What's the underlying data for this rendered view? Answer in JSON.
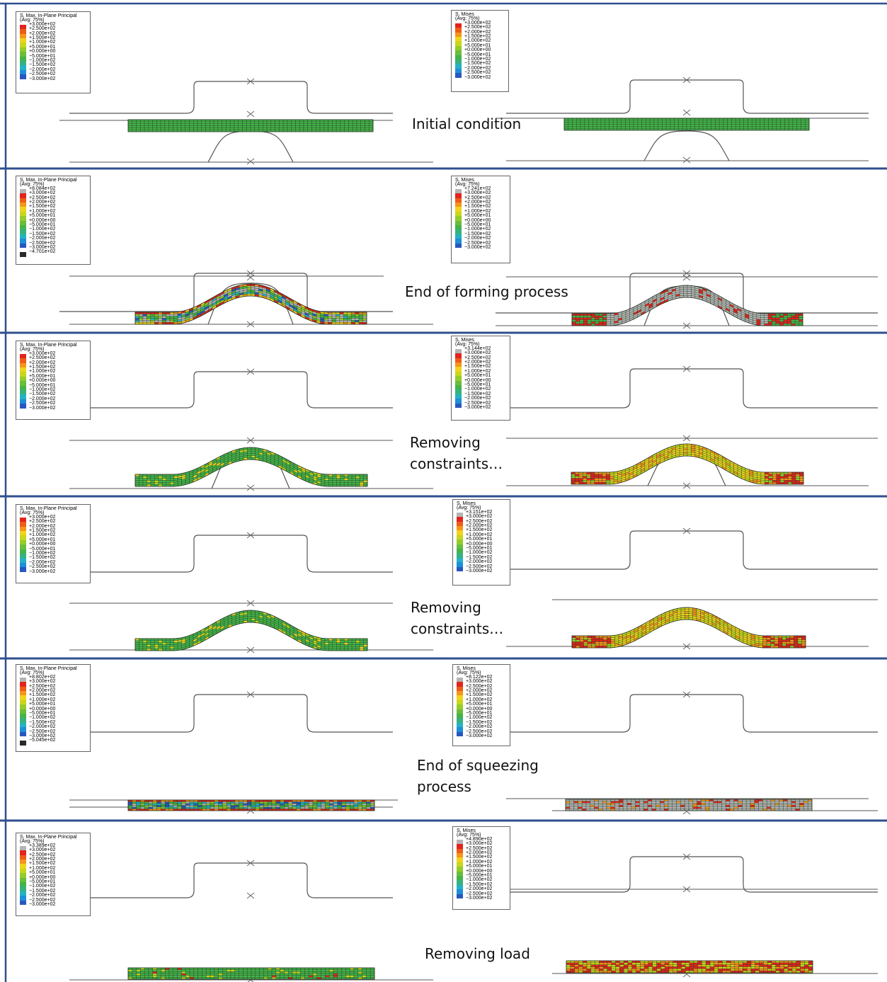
{
  "legend_colors": {
    "gray": "#b4b4b4",
    "red": "#e3241d",
    "orange_red": "#ee5c17",
    "orange": "#f5951b",
    "yellow": "#f0d31d",
    "yellow_green": "#c8d61c",
    "light_green": "#95cc2a",
    "green": "#6bbd3c",
    "med_green": "#45b34a",
    "teal": "#37b27e",
    "cyan": "#25b2c5",
    "sky": "#1e8fd8",
    "blue": "#2957c0",
    "dark_blue": "#2b3596",
    "black": "#2a2a2a"
  },
  "base_values": [
    "+3.000e+02",
    "+2.500e+02",
    "+2.000e+02",
    "+1.500e+02",
    "+1.000e+02",
    "+5.000e+01",
    "+0.000e+00",
    "−5.000e+01",
    "−1.000e+02",
    "−1.500e+02",
    "−2.000e+02",
    "−2.500e+02",
    "−3.000e+02"
  ],
  "panels": [
    {
      "caption": [
        "Initial condition"
      ],
      "left_legend": {
        "title1": "S, Max. In-Plane Principal",
        "title2": "(Avg: 75%)",
        "top_value": null,
        "bottom_value": null
      },
      "right_legend": {
        "title1": "S, Mises",
        "title2": "(Avg: 75%)",
        "top_value": null,
        "bottom_value": null
      }
    },
    {
      "caption": [
        "End of forming process"
      ],
      "left_legend": {
        "title1": "S, Max. In-Plane Principal",
        "title2": "(Avg: 75%)",
        "top_value": "+8.084e+02",
        "bottom_value": "−4.701e+02"
      },
      "right_legend": {
        "title1": "S, Mises",
        "title2": "(Avg: 75%)",
        "top_value": "+7.241e+02",
        "bottom_value": null
      }
    },
    {
      "caption": [
        "Removing",
        "constraints…"
      ],
      "left_legend": {
        "title1": "S, Max. In-Plane Principal",
        "title2": "(Avg: 75%)",
        "top_value": null,
        "bottom_value": null
      },
      "right_legend": {
        "title1": "S, Mises",
        "title2": "(Avg: 75%)",
        "top_value": "+3.144e+02",
        "bottom_value": null
      }
    },
    {
      "caption": [
        "Removing",
        "constraints…"
      ],
      "left_legend": {
        "title1": "S, Max. In-Plane Principal",
        "title2": "(Avg: 75%)",
        "top_value": null,
        "bottom_value": null
      },
      "right_legend": {
        "title1": "S, Mises",
        "title2": "(Avg: 75%)",
        "top_value": "+3.151e+02",
        "bottom_value": null
      }
    },
    {
      "caption": [
        "End of squeezing",
        "process"
      ],
      "left_legend": {
        "title1": "S, Max. In-Plane Principal",
        "title2": "(Avg: 75%)",
        "top_value": "+8.802e+02",
        "bottom_value": "−5.045e+02"
      },
      "right_legend": {
        "title1": "S, Mises",
        "title2": "(Avg: 75%)",
        "top_value": "+8.122e+02",
        "bottom_value": null
      }
    },
    {
      "caption": [
        "Removing load"
      ],
      "left_legend": {
        "title1": "S, Max. In-Plane Principal",
        "title2": "(Avg: 75%)",
        "top_value": "+3.389e+02",
        "bottom_value": null
      },
      "right_legend": {
        "title1": "S, Mises",
        "title2": "(Avg: 75%)",
        "top_value": "+4.890e+02",
        "bottom_value": null
      }
    }
  ]
}
